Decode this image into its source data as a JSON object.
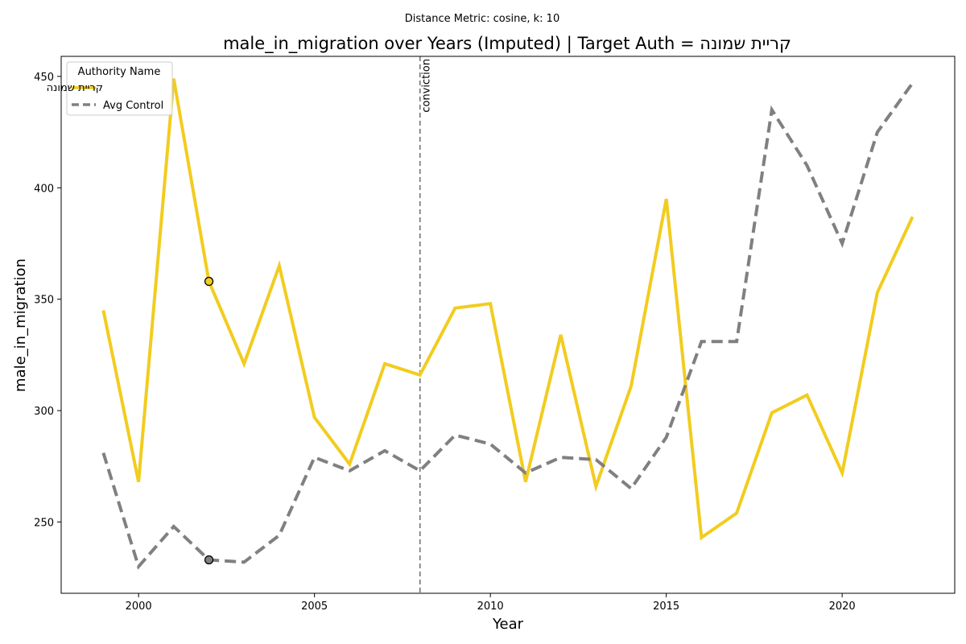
{
  "chart_data": {
    "type": "line",
    "subtitle": "Distance Metric: cosine, k: 10",
    "title": "male_in_migration over Years (Imputed) | Target Auth = קריית שמונה",
    "xlabel": "Year",
    "ylabel": "male_in_migration",
    "xlim": [
      1997.8,
      2023.2
    ],
    "ylim": [
      218,
      459
    ],
    "xticks": [
      2000,
      2005,
      2010,
      2015,
      2020
    ],
    "yticks": [
      250,
      300,
      350,
      400,
      450
    ],
    "grid": false,
    "legend": {
      "title": "Authority Name",
      "placement": "top-left"
    },
    "x": [
      1999,
      2000,
      2001,
      2002,
      2003,
      2004,
      2005,
      2006,
      2007,
      2008,
      2009,
      2010,
      2011,
      2012,
      2013,
      2014,
      2015,
      2016,
      2017,
      2018,
      2019,
      2020,
      2021,
      2022
    ],
    "series": [
      {
        "name": "קריית שמונה",
        "color": "#f2cc1f",
        "style": "solid",
        "values": [
          345,
          268,
          449,
          358,
          321,
          365,
          297,
          276,
          321,
          316,
          346,
          348,
          268,
          334,
          266,
          311,
          395,
          243,
          254,
          299,
          307,
          272,
          353,
          387
        ]
      },
      {
        "name": "Avg Control",
        "color": "#808080",
        "style": "dashed",
        "values": [
          281,
          230,
          248,
          233,
          232,
          244,
          279,
          273,
          282,
          273,
          289,
          285,
          272,
          279,
          278,
          265,
          288,
          331,
          331,
          435,
          410,
          375,
          425,
          447
        ]
      }
    ],
    "markers": [
      {
        "x": 2002,
        "y": 358,
        "color": "#f2cc1f"
      },
      {
        "x": 2002,
        "y": 233,
        "color": "#808080"
      }
    ],
    "vline": {
      "x": 2008,
      "label": "conviction",
      "color": "#808080"
    }
  }
}
